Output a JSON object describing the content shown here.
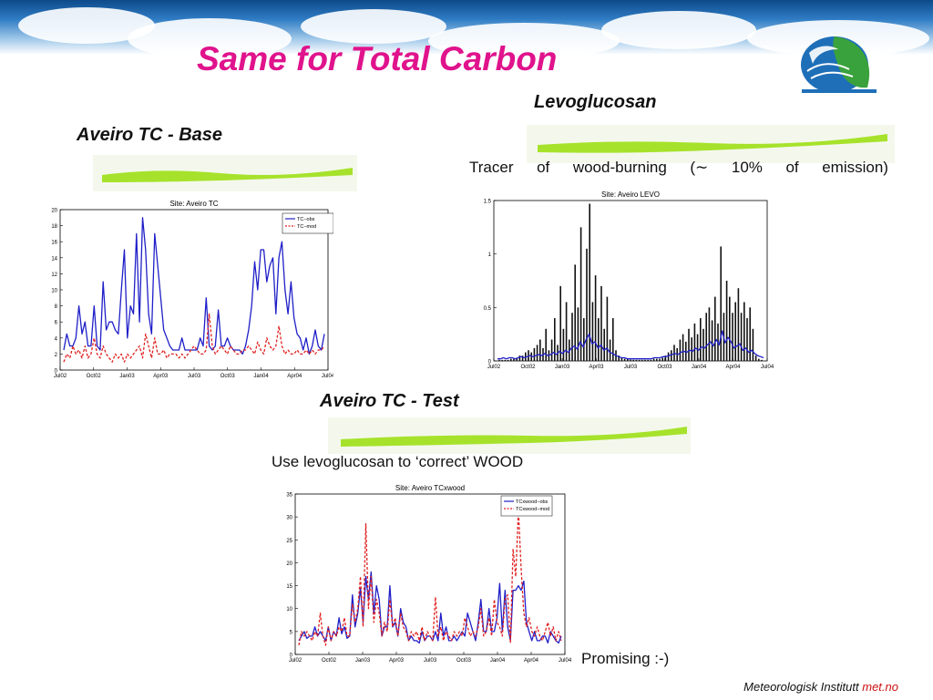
{
  "slide": {
    "title": "Same for Total Carbon",
    "heading_base": "Aveiro TC - Base",
    "heading_levo": "Levoglucosan",
    "levo_note_words": [
      "Tracer",
      "of",
      "wood-burning",
      "(∼",
      "10%",
      "of",
      "emission)"
    ],
    "heading_test": "Aveiro TC - Test",
    "test_note": "Use levoglucosan to ‘correct’ WOOD",
    "promising": "Promising :-)",
    "footer_text": "Meteorologisk Institutt",
    "footer_brand": "met.no",
    "colors": {
      "title": "#e0138c",
      "streak": "#a6e22b",
      "obs": "#1f1fc8",
      "mod": "#e02020",
      "footer_brand": "#cc1010"
    }
  },
  "chart_data": [
    {
      "type": "line",
      "title": "Site: Aveiro TC",
      "xlabel": "",
      "ylabel": "",
      "xticks": [
        "Jul02",
        "Oct02",
        "Jan03",
        "Apr03",
        "Jul03",
        "Oct03",
        "Jan04",
        "Apr04",
        "Jul04"
      ],
      "yticks": [
        "0",
        "2",
        "4",
        "6",
        "8",
        "10",
        "12",
        "14",
        "16",
        "18",
        "20"
      ],
      "ylim": [
        0,
        20
      ],
      "legend": "top-right",
      "series": [
        {
          "name": "TC−obs",
          "style": "solid",
          "color": "#1f1fc8",
          "values": [
            2.5,
            4.5,
            3,
            3,
            4,
            8,
            4.5,
            6,
            3,
            3,
            8,
            3,
            2.5,
            11,
            5,
            6,
            6,
            5,
            4.5,
            10,
            15,
            4,
            8,
            7,
            17,
            6,
            19,
            15,
            7,
            4.5,
            17,
            13,
            9,
            5,
            4,
            3,
            2.5,
            2.5,
            2.5,
            4,
            2.5,
            2.5,
            2.5,
            2.5,
            2.5,
            4,
            3,
            9,
            3,
            2.5,
            3,
            7.5,
            3,
            3,
            4,
            3,
            2.5,
            2.5,
            2.5,
            2,
            3,
            5,
            8,
            13.5,
            10,
            15,
            15,
            11,
            13,
            14,
            7,
            14,
            16,
            10,
            7,
            11,
            6.5,
            4.5,
            4,
            2.5,
            4,
            2,
            3,
            5,
            3,
            2.5,
            4.5
          ]
        },
        {
          "name": "TC−mod",
          "style": "dashed",
          "color": "#e02020",
          "values": [
            1,
            2,
            1.5,
            3,
            2,
            2.5,
            1.5,
            3,
            1.5,
            2,
            4,
            2,
            1.5,
            3,
            2,
            1.5,
            1,
            2,
            1.5,
            2,
            1,
            2,
            1.5,
            2,
            2.5,
            3,
            1.5,
            4.5,
            3,
            1.5,
            4,
            2,
            2,
            2.5,
            1.5,
            2,
            2,
            2,
            1.5,
            2,
            1.5,
            2,
            2.5,
            3,
            2.5,
            2,
            2,
            2.5,
            7,
            3,
            2,
            2.5,
            3,
            2.5,
            2,
            3,
            2.5,
            2,
            2,
            2.5,
            2.5,
            3,
            2.5,
            2,
            3.5,
            2.5,
            2,
            4,
            3,
            2.5,
            3,
            5.5,
            3,
            2,
            2.5,
            2,
            2,
            2.5,
            2,
            2,
            2.5,
            2,
            2.5,
            2,
            2.5,
            2.5,
            3
          ]
        }
      ]
    },
    {
      "type": "bar",
      "title": "Site: Aveiro LEVO",
      "xlabel": "",
      "ylabel": "",
      "xticks": [
        "Jul02",
        "Oct02",
        "Jan03",
        "Apr03",
        "Jul03",
        "Oct03",
        "Jan04",
        "Apr04",
        "Jul04"
      ],
      "yticks": [
        "0",
        "0.5",
        "1",
        "1.5"
      ],
      "ylim": [
        0,
        1.5
      ],
      "legend": "none",
      "bars_note": "black vertical bars = observed LEVO; blue line = model",
      "obs_values": [
        0.01,
        0.01,
        0.01,
        0.01,
        0.02,
        0.02,
        0.03,
        0.05,
        0.05,
        0.08,
        0.1,
        0.08,
        0.12,
        0.15,
        0.2,
        0.12,
        0.3,
        0.1,
        0.2,
        0.4,
        0.15,
        0.7,
        0.3,
        0.55,
        0.2,
        0.45,
        0.9,
        0.5,
        1.25,
        0.4,
        1.05,
        1.47,
        0.55,
        0.8,
        0.4,
        0.7,
        0.3,
        0.6,
        0.2,
        0.4,
        0.1,
        0.05,
        0.03,
        0.02,
        0.02,
        0.01,
        0.01,
        0.01,
        0.01,
        0.01,
        0.01,
        0.01,
        0.01,
        0.02,
        0.02,
        0.02,
        0.03,
        0.05,
        0.08,
        0.1,
        0.15,
        0.12,
        0.2,
        0.25,
        0.18,
        0.3,
        0.22,
        0.35,
        0.25,
        0.4,
        0.3,
        0.45,
        0.5,
        0.38,
        0.6,
        0.35,
        1.07,
        0.45,
        0.75,
        0.6,
        0.45,
        0.55,
        0.68,
        0.45,
        0.55,
        0.4,
        0.5,
        0.3,
        0.05,
        0.02,
        0.01
      ],
      "series": [
        {
          "name": "",
          "style": "solid",
          "color": "#1f1fc8",
          "values": [
            0.02,
            0.02,
            0.03,
            0.02,
            0.03,
            0.03,
            0.02,
            0.03,
            0.04,
            0.03,
            0.04,
            0.05,
            0.04,
            0.05,
            0.06,
            0.05,
            0.07,
            0.05,
            0.06,
            0.08,
            0.06,
            0.09,
            0.07,
            0.1,
            0.08,
            0.12,
            0.14,
            0.11,
            0.18,
            0.13,
            0.2,
            0.25,
            0.16,
            0.18,
            0.12,
            0.15,
            0.1,
            0.12,
            0.08,
            0.07,
            0.05,
            0.04,
            0.03,
            0.03,
            0.02,
            0.02,
            0.02,
            0.02,
            0.02,
            0.02,
            0.02,
            0.02,
            0.02,
            0.03,
            0.03,
            0.03,
            0.04,
            0.04,
            0.05,
            0.06,
            0.07,
            0.06,
            0.08,
            0.09,
            0.08,
            0.1,
            0.09,
            0.12,
            0.1,
            0.13,
            0.12,
            0.15,
            0.18,
            0.14,
            0.2,
            0.15,
            0.28,
            0.17,
            0.22,
            0.18,
            0.12,
            0.14,
            0.16,
            0.1,
            0.12,
            0.08,
            0.1,
            0.07,
            0.05,
            0.04,
            0.03
          ]
        }
      ]
    },
    {
      "type": "line",
      "title": "Site: Aveiro TCxwood",
      "xlabel": "",
      "ylabel": "",
      "xticks": [
        "Jul02",
        "Oct02",
        "Jan03",
        "Apr03",
        "Jul03",
        "Oct03",
        "Jan04",
        "Apr04",
        "Jul04"
      ],
      "yticks": [
        "0",
        "5",
        "10",
        "15",
        "20",
        "25",
        "30",
        "35"
      ],
      "ylim": [
        0,
        35
      ],
      "legend": "top-right",
      "series": [
        {
          "name": "TCxwood−obs",
          "style": "solid",
          "color": "#1f1fc8",
          "values": [
            3,
            4,
            5,
            3.5,
            4,
            4,
            6,
            4,
            5,
            4,
            3,
            6,
            3,
            5,
            4,
            8,
            4.5,
            6,
            3.5,
            4,
            13,
            6,
            9,
            14.5,
            7,
            17,
            12,
            18,
            9,
            15,
            12,
            4,
            6,
            6,
            15,
            6,
            7,
            4,
            10,
            7,
            6,
            3,
            4,
            3,
            3,
            2.5,
            5,
            3,
            4,
            4,
            3,
            5,
            3,
            9,
            4,
            6,
            3,
            3,
            4,
            3,
            4,
            5,
            4,
            9,
            7,
            5,
            3,
            7,
            12,
            5,
            5,
            10,
            5,
            5,
            8,
            15.5,
            5,
            14,
            6,
            3,
            14,
            14,
            15,
            14,
            16,
            7,
            5,
            3,
            5,
            3,
            3,
            4,
            4,
            2.5,
            5,
            4,
            3,
            2.5,
            4
          ]
        },
        {
          "name": "TCxwood−mod",
          "style": "dashed",
          "color": "#e02020",
          "values": [
            2,
            5,
            4,
            5,
            4,
            3,
            5,
            4,
            9,
            4,
            2,
            6,
            3,
            5,
            4,
            6,
            5,
            8,
            4,
            4,
            11,
            7,
            10,
            17,
            6,
            28.5,
            10,
            17,
            7,
            12,
            9,
            4,
            7,
            5,
            12,
            6,
            8,
            4,
            9,
            6,
            5,
            3,
            5,
            4,
            5,
            3,
            6,
            3,
            5,
            4,
            3,
            12.5,
            4,
            6,
            3,
            5,
            4,
            3,
            5,
            4,
            5,
            4,
            8,
            6,
            4,
            5,
            4,
            6,
            10,
            4,
            5,
            8,
            4,
            12,
            7,
            6,
            4,
            12,
            13,
            2.5,
            23,
            17,
            31.5,
            19,
            9,
            6,
            8,
            5,
            4,
            6,
            4,
            3,
            5,
            7,
            4,
            6,
            3,
            5,
            3
          ]
        }
      ]
    }
  ]
}
